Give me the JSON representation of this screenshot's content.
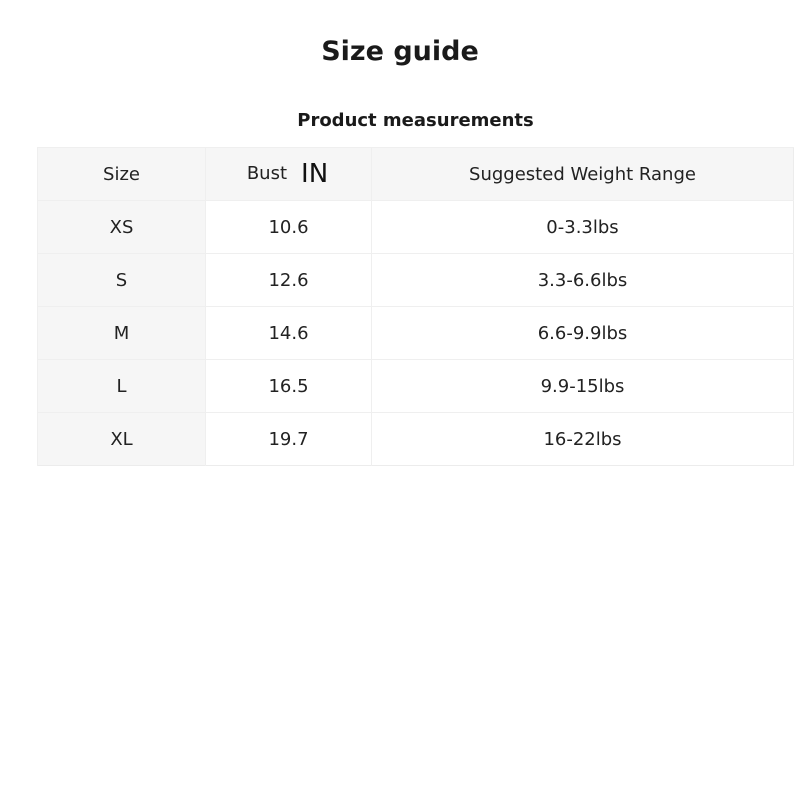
{
  "title": "Size guide",
  "subtitle": "Product measurements",
  "table": {
    "headers": [
      "Size",
      "Bust",
      "Suggested Weight Range"
    ],
    "unit": "IN",
    "rows": [
      [
        "XS",
        "10.6",
        "0-3.3lbs"
      ],
      [
        "S",
        "12.6",
        "3.3-6.6lbs"
      ],
      [
        "M",
        "14.6",
        "6.6-9.9lbs"
      ],
      [
        "L",
        "16.5",
        "9.9-15lbs"
      ],
      [
        "XL",
        "19.7",
        "16-22lbs"
      ]
    ]
  }
}
